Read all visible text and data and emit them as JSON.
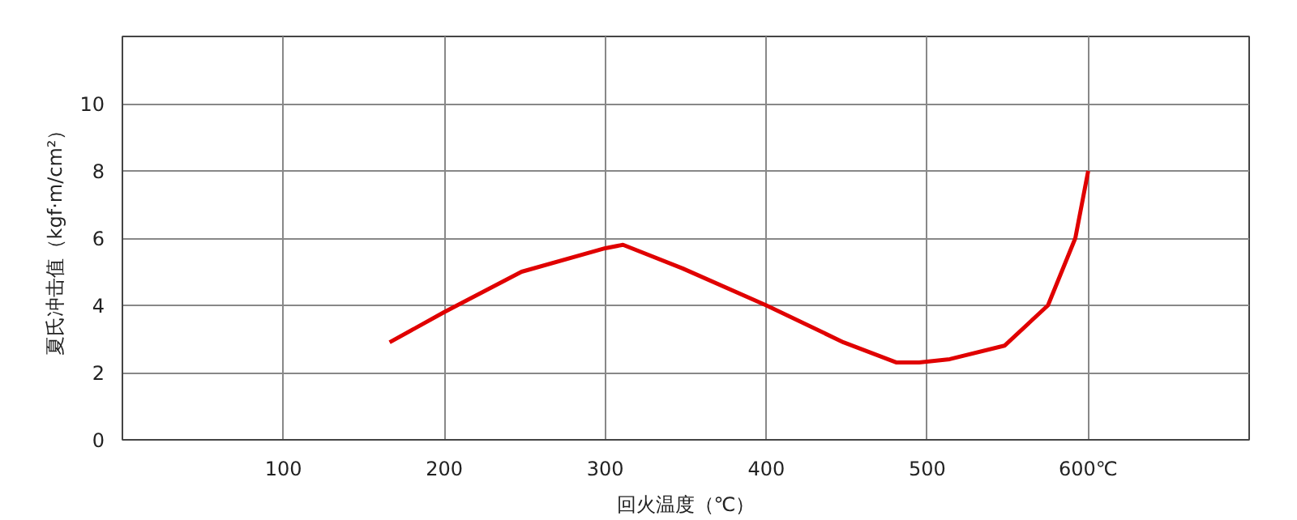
{
  "chart_data": {
    "type": "line",
    "xlabel": "回火温度（℃）",
    "ylabel": "夏氏冲击值（kgf·m/cm²）",
    "x": [
      166,
      200,
      248,
      300,
      311,
      348,
      400,
      448,
      481,
      495,
      514,
      548,
      575,
      592,
      600
    ],
    "series": [
      {
        "color": "#e00000",
        "values": [
          2.9,
          3.8,
          5.0,
          5.7,
          5.8,
          5.1,
          4.0,
          2.9,
          2.3,
          2.3,
          2.4,
          2.8,
          4.0,
          6.0,
          8.0
        ]
      }
    ],
    "xlim": [
      0,
      700
    ],
    "ylim": [
      0,
      12
    ],
    "xticks": [
      100,
      200,
      300,
      400,
      500,
      {
        "value": 600,
        "label": "600℃"
      }
    ],
    "yticks": [
      0,
      2,
      4,
      6,
      8,
      10
    ],
    "grid": true,
    "marker": "none",
    "line_style": "solid"
  }
}
